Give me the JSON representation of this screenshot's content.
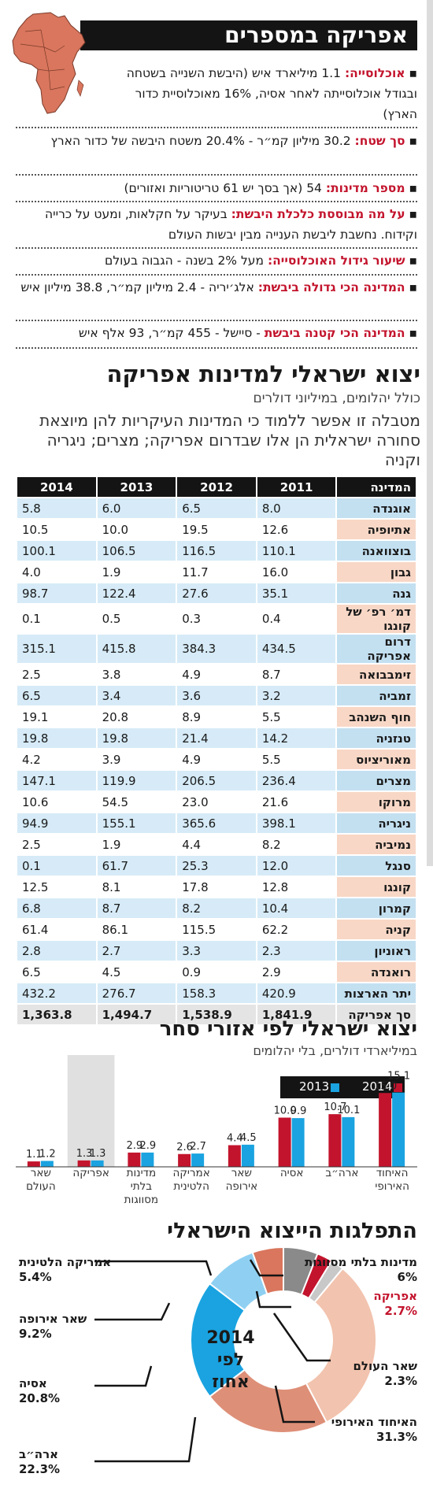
{
  "section1": {
    "title": "אפריקה במספרים",
    "facts": [
      {
        "label": "אוכלוסייה:",
        "text": " 1.1 מיליארד איש (היבשת השנייה בשטחה ובגודל אוכלוסייתה לאחר אסיה, 16% מאוכלוסיית כדור הארץ)"
      },
      {
        "label": "סך שטח:",
        "text": " 30.2 מיליון קמ״ר - 20.4% משטח היבשה של כדור הארץ"
      },
      {
        "label": "מספר מדינות:",
        "text": " 54 (אך בסך יש 61 טריטוריות ואזורים)"
      },
      {
        "label": "על מה מבוססת כלכלת היבשת:",
        "text": " בעיקר על חקלאות, ומעט על כרייה וקידוח. נחשבת ליבשת הענייה מבין יבשות העולם"
      },
      {
        "label": "שיעור גידול האוכלוסייה:",
        "text": " מעל 2% בשנה - הגבוה בעולם"
      },
      {
        "label": "המדינה הכי גדולה ביבשת:",
        "text": " אלג׳יריה - 2.4 מיליון קמ״ר, 38.8 מיליון איש"
      },
      {
        "label": "המדינה הכי קטנה ביבשת",
        "text": " - סיישל - 455 קמ״ר, 93 אלף איש"
      }
    ]
  },
  "section2": {
    "title": "יצוא ישראלי למדינות אפריקה",
    "subtitle": "כולל יהלומים, במיליוני דולרים",
    "description": "מטבלה זו אפשר ללמוד כי המדינות העיקריות להן מיוצאת סחורה ישראלית הן אלו שבדרום אפריקה; מצרים; ניגריה וקניה",
    "headers": [
      "המדינה",
      "2011",
      "2012",
      "2013",
      "2014"
    ],
    "rows": [
      [
        "אוגנדה",
        "8.0",
        "6.5",
        "6.0",
        "5.8"
      ],
      [
        "אתיופיה",
        "12.6",
        "19.5",
        "10.0",
        "10.5"
      ],
      [
        "בוצוואנה",
        "110.1",
        "116.5",
        "106.5",
        "100.1"
      ],
      [
        "גבון",
        "16.0",
        "11.7",
        "1.9",
        "4.0"
      ],
      [
        "גנה",
        "35.1",
        "27.6",
        "122.4",
        "98.7"
      ],
      [
        "דמ׳ רפ׳ של קונגו",
        "0.4",
        "0.3",
        "0.5",
        "0.1"
      ],
      [
        "דרום אפריקה",
        "434.5",
        "384.3",
        "415.8",
        "315.1"
      ],
      [
        "זימבבואה",
        "8.7",
        "4.9",
        "3.8",
        "2.5"
      ],
      [
        "זמביה",
        "3.2",
        "3.6",
        "3.4",
        "6.5"
      ],
      [
        "חוף השנהב",
        "5.5",
        "8.9",
        "20.8",
        "19.1"
      ],
      [
        "טנזניה",
        "14.2",
        "21.4",
        "19.8",
        "19.8"
      ],
      [
        "מאוריציוס",
        "5.5",
        "4.9",
        "3.9",
        "4.2"
      ],
      [
        "מצרים",
        "236.4",
        "206.5",
        "119.9",
        "147.1"
      ],
      [
        "מרוקו",
        "21.6",
        "23.0",
        "54.5",
        "10.6"
      ],
      [
        "ניגריה",
        "398.1",
        "365.6",
        "155.1",
        "94.9"
      ],
      [
        "נמיביה",
        "8.2",
        "4.4",
        "1.9",
        "2.5"
      ],
      [
        "סנגל",
        "12.0",
        "25.3",
        "61.7",
        "0.1"
      ],
      [
        "קונגו",
        "12.8",
        "17.8",
        "8.1",
        "12.5"
      ],
      [
        "קמרון",
        "10.4",
        "8.2",
        "8.7",
        "6.8"
      ],
      [
        "קניה",
        "62.2",
        "115.5",
        "86.1",
        "61.4"
      ],
      [
        "ראוניון",
        "2.3",
        "3.3",
        "2.7",
        "2.8"
      ],
      [
        "רואנדה",
        "2.9",
        "0.9",
        "4.5",
        "6.5"
      ],
      [
        "יתר הארצות",
        "420.9",
        "158.3",
        "276.7",
        "432.2"
      ]
    ],
    "total": [
      "סך אפריקה",
      "1,841.9",
      "1,538.9",
      "1,494.7",
      "1,363.8"
    ]
  },
  "section3": {
    "title": "יצוא ישראלי לפי אזורי סחר",
    "subtitle": "במיליארדי דולרים, בלי יהלומים",
    "legend": {
      "y2014": "2014",
      "y2013": "2013"
    }
  },
  "section4": {
    "title": "התפלגות הייצוא הישראלי",
    "center": [
      "2014",
      "לפי",
      "אחוז"
    ],
    "labels": [
      {
        "name": "מדינות בלתי מסווגות",
        "pct": "6%"
      },
      {
        "name": "אפריקה",
        "pct": "2.7%"
      },
      {
        "name": "שאר העולם",
        "pct": "2.3%"
      },
      {
        "name": "האיחוד האירופי",
        "pct": "31.3%"
      },
      {
        "name": "ארה״ב",
        "pct": "22.3%"
      },
      {
        "name": "אסיה",
        "pct": "20.8%"
      },
      {
        "name": "שאר אירופה",
        "pct": "9.2%"
      },
      {
        "name": "אמריקה הלטינית",
        "pct": "5.4%"
      }
    ]
  },
  "chart_data": [
    {
      "type": "bar",
      "title": "יצוא ישראלי לפי אזורי סחר",
      "subtitle": "במיליארדי דולרים, בלי יהלומים",
      "categories": [
        "האיחוד האירופי",
        "ארה״ב",
        "אסיה",
        "שאר אירופה",
        "אמריקה הלטינית",
        "מדינות בלתי מסווגות",
        "אפריקה",
        "שאר העולם"
      ],
      "series": [
        {
          "name": "2014",
          "values": [
            15.0,
            10.7,
            10.0,
            4.4,
            2.6,
            2.9,
            1.3,
            1.1
          ],
          "color": "#c3142d"
        },
        {
          "name": "2013",
          "values": [
            15.1,
            10.1,
            9.9,
            4.5,
            2.7,
            2.9,
            1.3,
            1.2
          ],
          "color": "#1aa3e0"
        }
      ],
      "highlight_category": "אפריקה",
      "ylim": [
        0,
        16
      ]
    },
    {
      "type": "pie",
      "title": "התפלגות הייצוא הישראלי",
      "categories": [
        "מדינות בלתי מסווגות",
        "אפריקה",
        "שאר העולם",
        "האיחוד האירופי",
        "ארה״ב",
        "אסיה",
        "שאר אירופה",
        "אמריקה הלטינית"
      ],
      "values": [
        6.0,
        2.7,
        2.3,
        31.3,
        22.3,
        20.8,
        9.2,
        5.4
      ],
      "colors": [
        "#8a8a8a",
        "#c3142d",
        "#c8c8c8",
        "#f2c3ae",
        "#de8f78",
        "#1aa3e0",
        "#8fd0f2",
        "#d9765d"
      ]
    }
  ]
}
